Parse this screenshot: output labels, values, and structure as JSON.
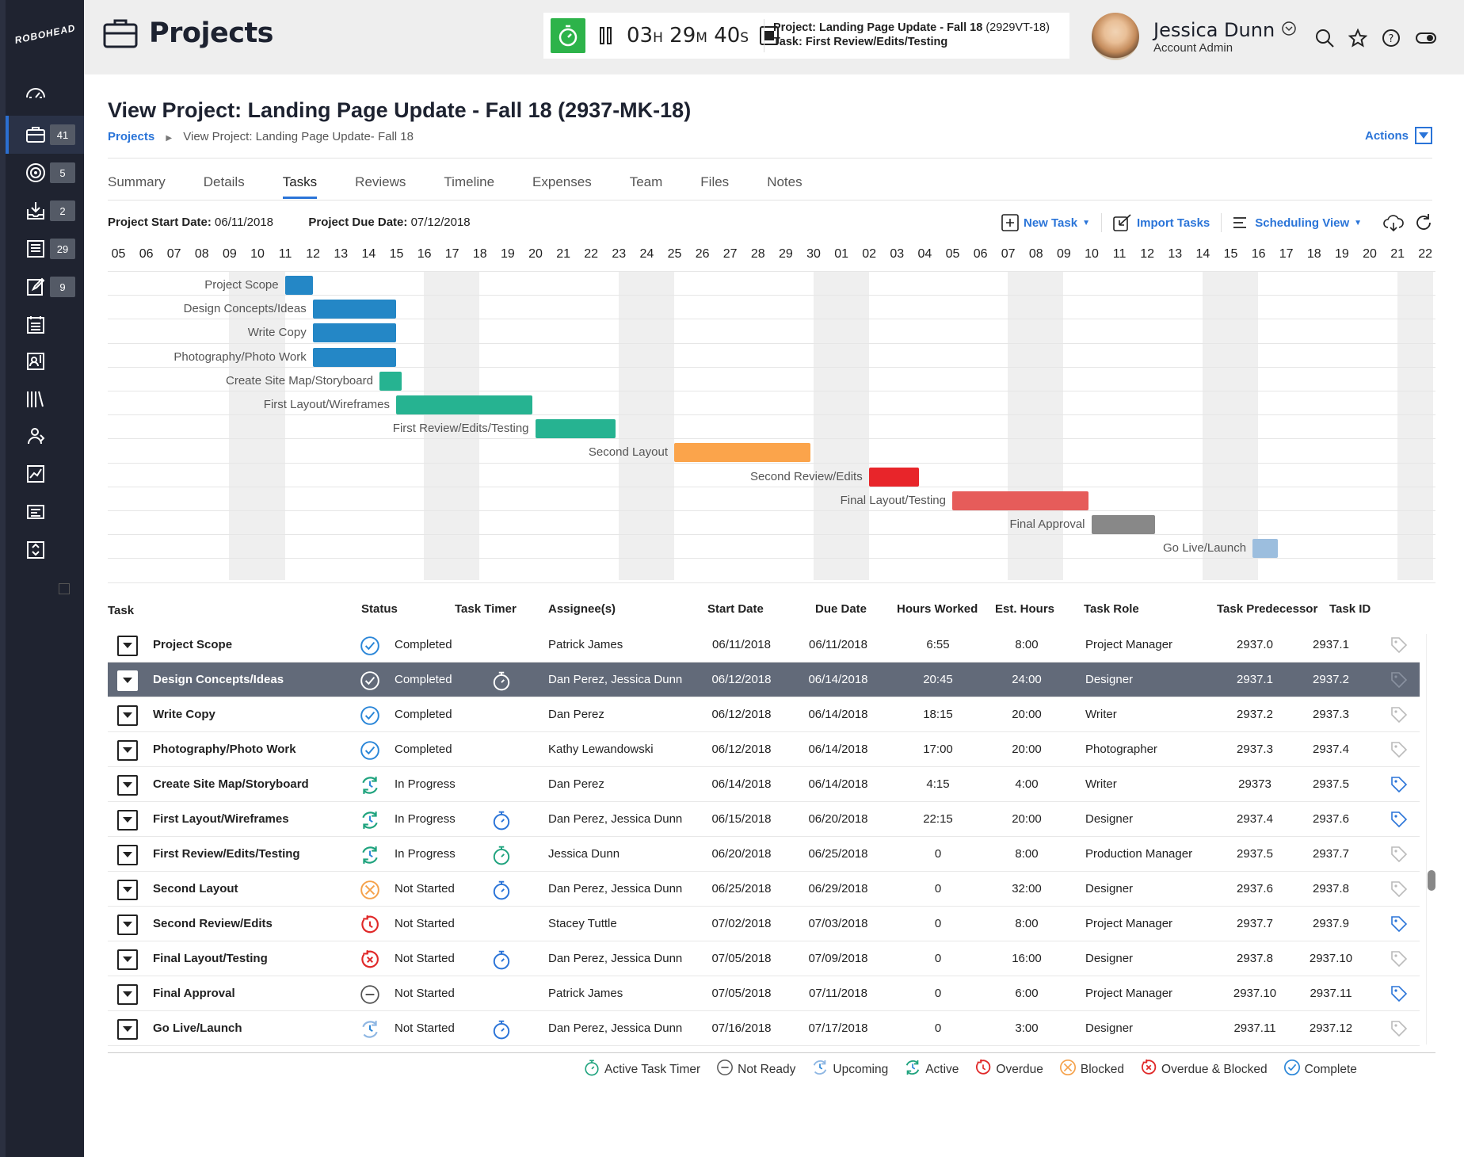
{
  "app": {
    "logo": "ROBOHEAD",
    "header_title": "Projects"
  },
  "sidebar": {
    "items": [
      {
        "icon": "dashboard-icon",
        "badge": ""
      },
      {
        "icon": "briefcase-icon",
        "badge": "41"
      },
      {
        "icon": "target-icon",
        "badge": "5"
      },
      {
        "icon": "inbox-download-icon",
        "badge": "2"
      },
      {
        "icon": "list-doc-icon",
        "badge": "29"
      },
      {
        "icon": "edit-pencil-icon",
        "badge": "9"
      },
      {
        "icon": "calendar-list-icon",
        "badge": ""
      },
      {
        "icon": "contact-card-icon",
        "badge": ""
      },
      {
        "icon": "library-icon",
        "badge": ""
      },
      {
        "icon": "people-icon",
        "badge": ""
      },
      {
        "icon": "chart-line-icon",
        "badge": ""
      },
      {
        "icon": "news-icon",
        "badge": ""
      },
      {
        "icon": "recycle-icon",
        "badge": ""
      }
    ]
  },
  "timer": {
    "hours": "03",
    "h_unit": "H",
    "minutes": "29",
    "m_unit": "M",
    "seconds": "40",
    "s_unit": "S",
    "project_label": "Project: Landing Page Update - Fall 18",
    "project_code": "(2929VT-18)",
    "task_label": "Task: First Review/Edits/Testing"
  },
  "user": {
    "name": "Jessica Dunn",
    "role": "Account Admin"
  },
  "page": {
    "title": "View Project: Landing Page Update - Fall 18 (2937-MK-18)",
    "crumb_link": "Projects",
    "crumb_current": "View Project: Landing Page Update- Fall 18",
    "actions": "Actions"
  },
  "tabs": [
    "Summary",
    "Details",
    "Tasks",
    "Reviews",
    "Timeline",
    "Expenses",
    "Team",
    "Files",
    "Notes"
  ],
  "dates": {
    "start_label": "Project Start Date:",
    "start": "06/11/2018",
    "due_label": "Project Due Date:",
    "due": "07/12/2018"
  },
  "tools": {
    "new_task": "New Task",
    "import_tasks": "Import Tasks",
    "scheduling_view": "Scheduling View"
  },
  "gantt": {
    "days": [
      "05",
      "06",
      "07",
      "08",
      "09",
      "10",
      "11",
      "12",
      "13",
      "14",
      "15",
      "16",
      "17",
      "18",
      "19",
      "20",
      "21",
      "22",
      "23",
      "24",
      "25",
      "26",
      "27",
      "28",
      "29",
      "30",
      "01",
      "02",
      "03",
      "04",
      "05",
      "06",
      "07",
      "08",
      "09",
      "10",
      "11",
      "12",
      "13",
      "14",
      "15",
      "16",
      "17",
      "18",
      "19",
      "20",
      "21",
      "22"
    ],
    "tasks": [
      {
        "label": "Project Scope",
        "start": 6,
        "end": 7,
        "color": "#2487c6"
      },
      {
        "label": "Design Concepts/Ideas",
        "start": 7,
        "end": 10,
        "color": "#2487c6"
      },
      {
        "label": "Write Copy",
        "start": 7,
        "end": 10,
        "color": "#2487c6"
      },
      {
        "label": "Photography/Photo Work",
        "start": 7,
        "end": 10,
        "color": "#2487c6"
      },
      {
        "label": "Create Site Map/Storyboard",
        "start": 9.4,
        "end": 10.2,
        "color": "#26b391"
      },
      {
        "label": "First Layout/Wireframes",
        "start": 10,
        "end": 14.9,
        "color": "#26b391"
      },
      {
        "label": "First Review/Edits/Testing",
        "start": 15,
        "end": 17.9,
        "color": "#26b391"
      },
      {
        "label": "Second Layout",
        "start": 20,
        "end": 24.9,
        "color": "#fba44b"
      },
      {
        "label": "Second Review/Edits",
        "start": 27,
        "end": 28.8,
        "color": "#e8252a"
      },
      {
        "label": "Final Layout/Testing",
        "start": 30,
        "end": 34.9,
        "color": "#e65c5a"
      },
      {
        "label": "Final Approval",
        "start": 35,
        "end": 37.3,
        "color": "#888888"
      },
      {
        "label": "Go Live/Launch",
        "start": 40.8,
        "end": 41.7,
        "color": "#9cbede"
      }
    ]
  },
  "table": {
    "headers": {
      "task": "Task",
      "status": "Status",
      "timer": "Task Timer",
      "assignees": "Assignee(s)",
      "start": "Start Date",
      "due": "Due Date",
      "worked": "Hours Worked",
      "est": "Est. Hours",
      "role": "Task Role",
      "pred": "Task Predecessor",
      "id": "Task ID"
    },
    "rows": [
      {
        "task": "Project Scope",
        "status": "Completed",
        "status_icon": "complete",
        "timer": "",
        "assignees": "Patrick James",
        "start": "06/11/2018",
        "due": "06/11/2018",
        "worked": "6:55",
        "est": "8:00",
        "role": "Project Manager",
        "pred": "2937.0",
        "id": "2937.1",
        "tag": "grey"
      },
      {
        "task": "Design Concepts/Ideas",
        "status": "Completed",
        "status_icon": "complete",
        "timer": "white",
        "assignees": "Dan Perez, Jessica Dunn",
        "start": "06/12/2018",
        "due": "06/14/2018",
        "worked": "20:45",
        "est": "24:00",
        "role": "Designer",
        "pred": "2937.1",
        "id": "2937.2",
        "tag": "grey"
      },
      {
        "task": "Write Copy",
        "status": "Completed",
        "status_icon": "complete",
        "timer": "",
        "assignees": "Dan Perez",
        "start": "06/12/2018",
        "due": "06/14/2018",
        "worked": "18:15",
        "est": "20:00",
        "role": "Writer",
        "pred": "2937.2",
        "id": "2937.3",
        "tag": "grey"
      },
      {
        "task": "Photography/Photo Work",
        "status": "Completed",
        "status_icon": "complete",
        "timer": "",
        "assignees": "Kathy Lewandowski",
        "start": "06/12/2018",
        "due": "06/14/2018",
        "worked": "17:00",
        "est": "20:00",
        "role": "Photographer",
        "pred": "2937.3",
        "id": "2937.4",
        "tag": "grey"
      },
      {
        "task": "Create Site Map/Storyboard",
        "status": "In Progress",
        "status_icon": "active",
        "timer": "",
        "assignees": "Dan Perez",
        "start": "06/14/2018",
        "due": "06/14/2018",
        "worked": "4:15",
        "est": "4:00",
        "role": "Writer",
        "pred": "29373",
        "id": "2937.5",
        "tag": "blue"
      },
      {
        "task": "First Layout/Wireframes",
        "status": "In Progress",
        "status_icon": "active",
        "timer": "blue",
        "assignees": "Dan Perez, Jessica Dunn",
        "start": "06/15/2018",
        "due": "06/20/2018",
        "worked": "22:15",
        "est": "20:00",
        "role": "Designer",
        "pred": "2937.4",
        "id": "2937.6",
        "tag": "blue"
      },
      {
        "task": "First Review/Edits/Testing",
        "status": "In Progress",
        "status_icon": "active",
        "timer": "green",
        "assignees": "Jessica Dunn",
        "start": "06/20/2018",
        "due": "06/25/2018",
        "worked": "0",
        "est": "8:00",
        "role": "Production Manager",
        "pred": "2937.5",
        "id": "2937.7",
        "tag": "grey"
      },
      {
        "task": "Second Layout",
        "status": "Not Started",
        "status_icon": "blocked",
        "timer": "blue",
        "assignees": "Dan Perez, Jessica Dunn",
        "start": "06/25/2018",
        "due": "06/29/2018",
        "worked": "0",
        "est": "32:00",
        "role": "Designer",
        "pred": "2937.6",
        "id": "2937.8",
        "tag": "grey"
      },
      {
        "task": "Second Review/Edits",
        "status": "Not Started",
        "status_icon": "overdue",
        "timer": "",
        "assignees": "Stacey Tuttle",
        "start": "07/02/2018",
        "due": "07/03/2018",
        "worked": "0",
        "est": "8:00",
        "role": "Project Manager",
        "pred": "2937.7",
        "id": "2937.9",
        "tag": "blue"
      },
      {
        "task": "Final Layout/Testing",
        "status": "Not Started",
        "status_icon": "overdue-blocked",
        "timer": "blue",
        "assignees": "Dan Perez, Jessica Dunn",
        "start": "07/05/2018",
        "due": "07/09/2018",
        "worked": "0",
        "est": "16:00",
        "role": "Designer",
        "pred": "2937.8",
        "id": "2937.10",
        "tag": "grey"
      },
      {
        "task": "Final Approval",
        "status": "Not Started",
        "status_icon": "not-ready",
        "timer": "",
        "assignees": "Patrick James",
        "start": "07/05/2018",
        "due": "07/11/2018",
        "worked": "0",
        "est": "6:00",
        "role": "Project Manager",
        "pred": "2937.10",
        "id": "2937.11",
        "tag": "blue"
      },
      {
        "task": "Go Live/Launch",
        "status": "Not Started",
        "status_icon": "upcoming",
        "timer": "blue",
        "assignees": "Dan Perez, Jessica Dunn",
        "start": "07/16/2018",
        "due": "07/17/2018",
        "worked": "0",
        "est": "3:00",
        "role": "Designer",
        "pred": "2937.11",
        "id": "2937.12",
        "tag": "grey"
      }
    ]
  },
  "legend": [
    {
      "icon": "active-timer",
      "label": "Active Task Timer"
    },
    {
      "icon": "not-ready",
      "label": "Not Ready"
    },
    {
      "icon": "upcoming",
      "label": "Upcoming"
    },
    {
      "icon": "active",
      "label": "Active"
    },
    {
      "icon": "overdue",
      "label": "Overdue"
    },
    {
      "icon": "blocked",
      "label": "Blocked"
    },
    {
      "icon": "overdue-blocked",
      "label": "Overdue & Blocked"
    },
    {
      "icon": "complete",
      "label": "Complete"
    }
  ],
  "colors": {
    "accent": "#2a74d8",
    "selected_row": "#626a79",
    "sidebar": "#1f2330",
    "timer_green": "#2db34a"
  }
}
